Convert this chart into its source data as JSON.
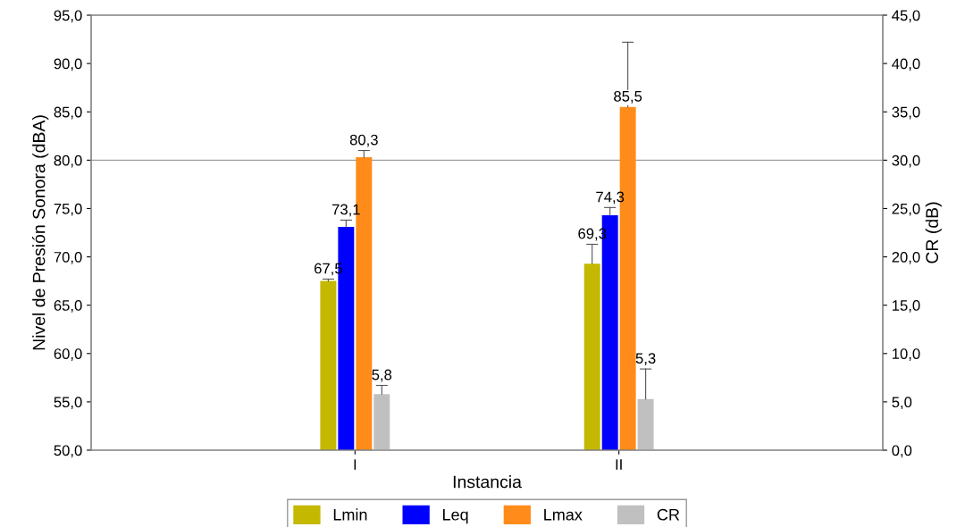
{
  "chart_data": {
    "type": "bar",
    "xlabel": "Instancia",
    "ylabel": "Nivel de Presión Sonora (dBA)",
    "y2label": "CR (dB)",
    "categories": [
      "I",
      "II"
    ],
    "series": [
      {
        "name": "Lmin",
        "color": "#c4b800",
        "values": [
          67.5,
          69.3
        ],
        "errors": [
          [
            67.5,
            67.7
          ],
          [
            69.3,
            71.3
          ]
        ],
        "value_labels": [
          "67,5",
          "69,3"
        ]
      },
      {
        "name": "Leq",
        "color": "#0000ff",
        "values": [
          73.1,
          74.3
        ],
        "errors": [
          [
            73.1,
            73.8
          ],
          [
            74.3,
            75.1
          ]
        ],
        "value_labels": [
          "73,1",
          "74,3"
        ]
      },
      {
        "name": "Lmax",
        "color": "#ff8c1a",
        "values": [
          80.3,
          85.5
        ],
        "errors": [
          [
            80.3,
            81.0
          ],
          [
            85.5,
            92.2
          ]
        ],
        "value_labels": [
          "80,3",
          "85,5"
        ]
      },
      {
        "name": "CR",
        "color": "#c0c0c0",
        "axis": "y2",
        "values": [
          5.8,
          5.3
        ],
        "errors": [
          [
            5.8,
            6.7
          ],
          [
            5.3,
            8.4
          ]
        ],
        "value_labels": [
          "5,8",
          "5,3"
        ]
      }
    ],
    "ylim": [
      50,
      95
    ],
    "yticks": [
      {
        "value": 50,
        "label": "50,0"
      },
      {
        "value": 55,
        "label": "55,0"
      },
      {
        "value": 60,
        "label": "60,0"
      },
      {
        "value": 65,
        "label": "65,0"
      },
      {
        "value": 70,
        "label": "70,0"
      },
      {
        "value": 75,
        "label": "75,0"
      },
      {
        "value": 80,
        "label": "80,0"
      },
      {
        "value": 85,
        "label": "85,0"
      },
      {
        "value": 90,
        "label": "90,0"
      },
      {
        "value": 95,
        "label": "95,0"
      }
    ],
    "y2lim": [
      0,
      45
    ],
    "y2ticks": [
      {
        "value": 0,
        "label": "0,0"
      },
      {
        "value": 5,
        "label": "5,0"
      },
      {
        "value": 10,
        "label": "10,0"
      },
      {
        "value": 15,
        "label": "15,0"
      },
      {
        "value": 20,
        "label": "20,0"
      },
      {
        "value": 25,
        "label": "25,0"
      },
      {
        "value": 30,
        "label": "30,0"
      },
      {
        "value": 35,
        "label": "35,0"
      },
      {
        "value": 40,
        "label": "40,0"
      },
      {
        "value": 45,
        "label": "45,0"
      }
    ],
    "ref_lines": [
      {
        "axis": "y",
        "value": 80,
        "color": "#a0a0a0"
      }
    ],
    "legend": "bottom",
    "grid": false
  }
}
